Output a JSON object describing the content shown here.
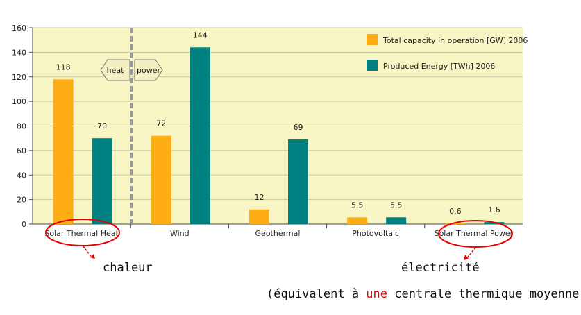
{
  "chart_data": {
    "type": "bar",
    "categories": [
      "Solar Thermal Heat",
      "Wind",
      "Geothermal",
      "Photovoltaic",
      "Solar Thermal Power"
    ],
    "series": [
      {
        "name": "Total capacity in operation [GW] 2006",
        "values": [
          118,
          72,
          12,
          5.5,
          0.6
        ],
        "labels": [
          "118",
          "72",
          "12",
          "5.5",
          "0.6"
        ],
        "color": "#ffad14"
      },
      {
        "name": "Produced Energy [TWh] 2006",
        "values": [
          70,
          144,
          69,
          5.5,
          1.6
        ],
        "labels": [
          "70",
          "144",
          "69",
          "5.5",
          "1.6"
        ],
        "color": "#008080"
      }
    ],
    "ylim": [
      0,
      160
    ],
    "yticks": [
      "0",
      "20",
      "40",
      "60",
      "80",
      "100",
      "120",
      "140",
      "160"
    ],
    "legend_position": "top-right",
    "grid": true,
    "plot_background": "#f8f6c4",
    "divider_arrows": {
      "left": "heat",
      "right": "power"
    }
  },
  "annotations": {
    "chaleur": "chaleur",
    "electricite": "électricité",
    "equiv_before": "(équivalent à ",
    "equiv_red": "une",
    "equiv_after": " centrale thermique moyenne)"
  }
}
